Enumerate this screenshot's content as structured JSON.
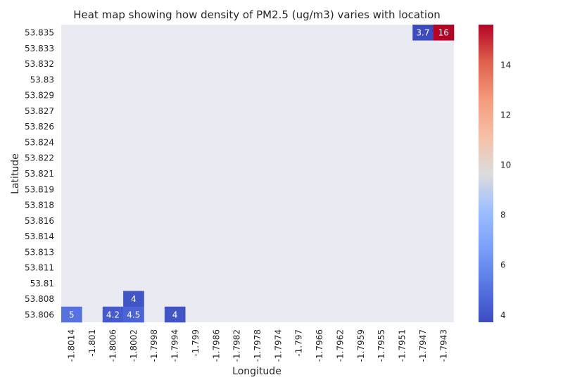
{
  "chart_data": {
    "type": "heatmap",
    "title": "Heat map showing how density of PM2.5 (ug/m3) varies with location",
    "xlabel": "Longitude",
    "ylabel": "Latitude",
    "x_categories": [
      "-1.8014",
      "-1.801",
      "-1.8006",
      "-1.8002",
      "-1.7998",
      "-1.7994",
      "-1.799",
      "-1.7986",
      "-1.7982",
      "-1.7978",
      "-1.7974",
      "-1.797",
      "-1.7966",
      "-1.7962",
      "-1.7959",
      "-1.7955",
      "-1.7951",
      "-1.7947",
      "-1.7943"
    ],
    "y_categories": [
      "53.835",
      "53.833",
      "53.832",
      "53.83",
      "53.829",
      "53.827",
      "53.826",
      "53.824",
      "53.822",
      "53.821",
      "53.819",
      "53.818",
      "53.816",
      "53.814",
      "53.813",
      "53.811",
      "53.81",
      "53.808",
      "53.806"
    ],
    "cells": [
      {
        "x": "-1.7947",
        "y": "53.835",
        "value": 3.7,
        "label": "3.7"
      },
      {
        "x": "-1.7943",
        "y": "53.835",
        "value": 15.6,
        "label": "16"
      },
      {
        "x": "-1.8002",
        "y": "53.808",
        "value": 4.0,
        "label": "4"
      },
      {
        "x": "-1.8014",
        "y": "53.806",
        "value": 5.0,
        "label": "5"
      },
      {
        "x": "-1.8006",
        "y": "53.806",
        "value": 4.2,
        "label": "4.2"
      },
      {
        "x": "-1.8002",
        "y": "53.806",
        "value": 4.5,
        "label": "4.5"
      },
      {
        "x": "-1.7994",
        "y": "53.806",
        "value": 4.0,
        "label": "4"
      }
    ],
    "missing_color": "#eaeaf2",
    "colormap": "coolwarm",
    "colorbar": {
      "range": [
        3.7,
        15.6
      ],
      "ticks": [
        4,
        6,
        8,
        10,
        12,
        14
      ],
      "tick_labels": [
        "4",
        "6",
        "8",
        "10",
        "12",
        "14"
      ]
    },
    "grid": false
  }
}
